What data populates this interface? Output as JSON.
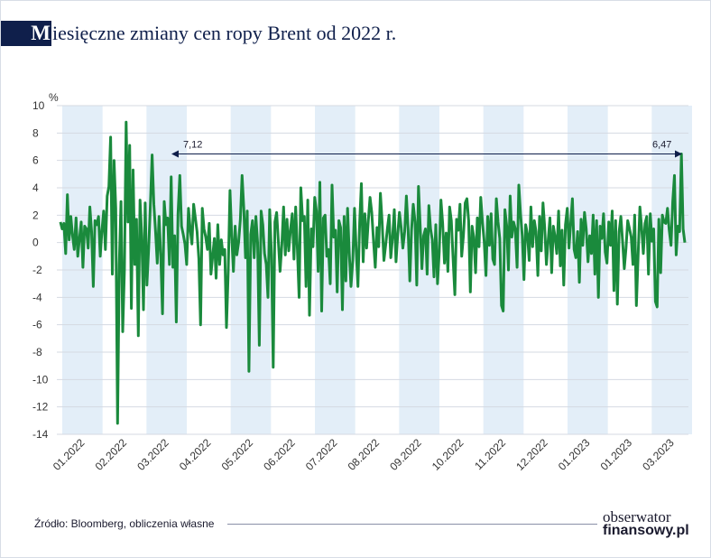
{
  "title": {
    "initial": "M",
    "rest": "iesięczne zmiany cen ropy Brent od 2022 r."
  },
  "source": "Źródło: Bloomberg, obliczenia własne",
  "brand": {
    "line1": "obserwator",
    "line2": "finansowy.pl"
  },
  "colors": {
    "line": "#1a8a3c",
    "band": "#e3eef8",
    "title_bar": "#0f1f4b",
    "annotation": "#0f1f4b"
  },
  "chart_data": {
    "type": "line",
    "title": "Miesięczne zmiany cen ropy Brent od 2022 r.",
    "ylabel": "",
    "y_unit": "%",
    "ylim": [
      -14,
      10
    ],
    "yticks": [
      -14,
      -12,
      -10,
      -8,
      -6,
      -4,
      -2,
      0,
      2,
      4,
      6,
      8,
      10
    ],
    "grid": true,
    "x_tick_labels": [
      "01.2022",
      "02.2022",
      "03.2022",
      "04.2022",
      "05.2022",
      "06.2022",
      "07.2022",
      "08.2022",
      "09.2022",
      "10.2022",
      "11.2022",
      "12.2022",
      "01.2023",
      "01.2023",
      "03.2023"
    ],
    "series": [
      {
        "values": [
          1.5,
          1.0,
          1.4,
          -0.8,
          3.5,
          0.2,
          1.9,
          0.5,
          -0.5,
          1.8,
          -1.0,
          0.3,
          1.5,
          -1.8,
          1.2,
          1.0,
          -0.4,
          2.6,
          0.8,
          -3.2,
          1.6,
          1.3,
          1.9,
          -1.0,
          0.9,
          2.3,
          -0.5,
          3.4,
          4.1,
          7.7,
          -2.3,
          6.0,
          2.5,
          -13.2,
          -1.6,
          3.0,
          -6.5,
          -2.0,
          8.8,
          1.5,
          7.1,
          -4.8,
          5.3,
          -1.6,
          1.7,
          -6.8,
          3.1,
          0.5,
          -4.9,
          2.9,
          -3.1,
          -0.4,
          2.8,
          6.4,
          2.8,
          0.8,
          -1.5,
          1.9,
          -1.0,
          -5.2,
          3.0,
          1.3,
          1.8,
          -1.6,
          4.8,
          -1.8,
          0.5,
          -5.8,
          2.1,
          4.9,
          1.2,
          0.6,
          -0.1,
          -1.6,
          2.5,
          1.0,
          -0.1,
          2.8,
          1.8,
          0.8,
          -1.2,
          -6.0,
          2.5,
          1.0,
          0.4,
          -0.5,
          1.4,
          -2.3,
          -1.0,
          0.3,
          -2.6,
          1.3,
          -1.6,
          0.2,
          -0.9,
          -0.5,
          -6.2,
          -2.2,
          3.8,
          0.5,
          -2.1,
          1.2,
          -0.9,
          0.0,
          1.7,
          4.9,
          2.5,
          -1.1,
          2.3,
          -9.4,
          0.6,
          1.6,
          -1.1,
          1.9,
          0.0,
          -7.5,
          2.3,
          1.3,
          -0.8,
          -1.6,
          -4.0,
          2.4,
          -0.9,
          -9.1,
          1.5,
          2.2,
          0.1,
          -2.1,
          -0.1,
          2.6,
          -0.9,
          1.7,
          -0.6,
          0.9,
          2.1,
          -1.2,
          2.6,
          -0.5,
          -4.0,
          4.0,
          1.6,
          1.9,
          -3.2,
          3.1,
          -5.3,
          1.0,
          -0.3,
          3.3,
          2.3,
          -2.1,
          4.4,
          -5.0,
          1.8,
          2.0,
          -1.0,
          -0.5,
          -3.0,
          4.2,
          0.4,
          0.9,
          -3.6,
          1.6,
          1.1,
          -4.9,
          1.9,
          -2.8,
          2.5,
          -0.8,
          -3.2,
          -1.3,
          2.5,
          -0.6,
          -3.2,
          1.4,
          4.3,
          -1.4,
          2.1,
          -0.4,
          1.6,
          3.3,
          2.2,
          0.1,
          -1.8,
          1.1,
          -0.3,
          3.6,
          1.5,
          -1.3,
          -0.2,
          1.0,
          2.0,
          -1.1,
          0.3,
          2.4,
          -1.4,
          0.6,
          2.2,
          1.1,
          -0.4,
          0.8,
          3.4,
          1.0,
          -2.8,
          0.9,
          2.8,
          1.5,
          -3.1,
          4.1,
          1.2,
          -1.9,
          0.5,
          1.0,
          -2.3,
          2.7,
          1.0,
          0.2,
          -2.5,
          1.3,
          -3.0,
          -0.7,
          3.1,
          1.4,
          -1.5,
          0.7,
          -2.1,
          2.6,
          1.6,
          -1.1,
          -3.8,
          1.7,
          0.9,
          2.8,
          -1.0,
          0.5,
          2.9,
          3.2,
          1.6,
          -3.6,
          1.2,
          0.4,
          -2.2,
          1.8,
          -0.3,
          3.3,
          1.5,
          0.1,
          -2.4,
          1.9,
          -0.2,
          2.1,
          -1.2,
          -1.6,
          3.2,
          1.5,
          0.3,
          -4.6,
          -5.0,
          2.4,
          1.2,
          -2.0,
          3.4,
          0.4,
          1.5,
          1.0,
          -1.8,
          4.2,
          2.1,
          0.5,
          -2.7,
          1.3,
          0.6,
          -1.3,
          2.6,
          -0.3,
          1.6,
          0.8,
          -2.4,
          1.9,
          -0.6,
          2.9,
          1.1,
          -1.6,
          0.2,
          1.8,
          -2.2,
          1.2,
          0.4,
          -0.8,
          2.3,
          -1.7,
          0.9,
          -3.1,
          1.3,
          2.5,
          -0.4,
          1.4,
          3.2,
          -0.5,
          -1.1,
          0.8,
          -2.9,
          1.7,
          -0.2,
          2.2,
          1.0,
          -1.4,
          0.5,
          -0.8,
          2.0,
          -2.3,
          1.6,
          -4.0,
          1.2,
          0.3,
          2.1,
          -0.7,
          -1.5,
          1.5,
          -0.2,
          2.3,
          -3.5,
          1.6,
          -4.5,
          0.8,
          1.9,
          0.1,
          -1.9,
          -0.4,
          1.6,
          1.0,
          0.4,
          -1.6,
          2.0,
          -4.6,
          -1.0,
          2.6,
          1.1,
          -0.8,
          1.4,
          1.9,
          -2.3,
          2.1,
          0.1,
          1.0,
          -4.3,
          -4.7,
          1.7,
          -2.2,
          2.0,
          1.5,
          1.4,
          2.5,
          0.9,
          -0.2,
          3.0,
          4.9,
          -0.9,
          1.2,
          0.8,
          6.47,
          1.0,
          0.0
        ]
      }
    ],
    "annotations": [
      {
        "label": "7,12"
      },
      {
        "label": "6,47"
      }
    ]
  }
}
